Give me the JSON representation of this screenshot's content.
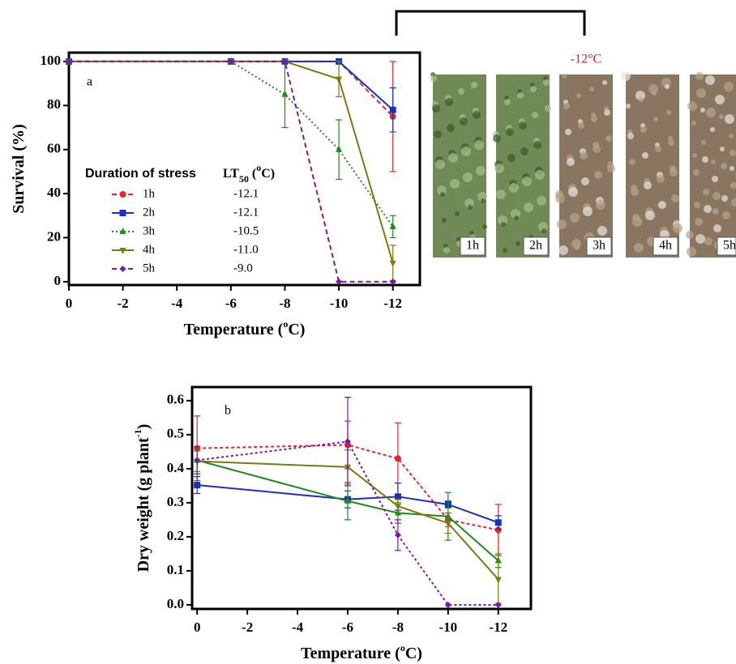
{
  "chart_data": [
    {
      "type": "line",
      "panel": "a",
      "ylabel": [
        "Survival (%)"
      ],
      "xlabel": [
        "Temperature (",
        "o",
        "C)"
      ],
      "x": [
        0,
        -6,
        -8,
        -10,
        -12
      ],
      "xlim": [
        0,
        -13
      ],
      "xticks": [
        0,
        -2,
        -4,
        -6,
        -8,
        -10,
        -12
      ],
      "ylim": [
        -1.5,
        104
      ],
      "yticks": [
        0,
        20,
        40,
        60,
        80,
        100
      ],
      "legend_title": "Duration of stress",
      "lt50_header": [
        "LT",
        "50",
        " (",
        "o",
        "C)"
      ],
      "series": [
        {
          "name": "1h",
          "lt50": "-12.1",
          "color": "#e8262a",
          "dash": "6,4",
          "marker": "circle",
          "values": [
            100,
            100,
            100,
            100,
            75
          ],
          "errors": [
            0,
            0,
            0,
            0,
            25
          ]
        },
        {
          "name": "2h",
          "lt50": "-12.1",
          "color": "#1a2fc0",
          "dash": "none",
          "marker": "square",
          "values": [
            100,
            100,
            100,
            100,
            78
          ],
          "errors": [
            0,
            0,
            0,
            0,
            10
          ]
        },
        {
          "name": "3h",
          "lt50": "-10.5",
          "color": "#1e8a1e",
          "dash": "2,3",
          "marker": "triangle-up",
          "values": [
            100,
            100,
            85,
            60,
            25
          ],
          "errors": [
            0,
            0,
            15,
            13.5,
            5
          ]
        },
        {
          "name": "4h",
          "lt50": "-11.0",
          "color": "#7a7a10",
          "dash": "none",
          "marker": "triangle-down",
          "values": [
            100,
            100,
            100,
            92,
            8.5
          ],
          "errors": [
            0,
            0,
            0,
            8,
            8
          ]
        },
        {
          "name": "5h",
          "lt50": "-9.0",
          "color": "#7a1aa0",
          "dash": "6,4",
          "marker": "diamond",
          "values": [
            100,
            100,
            100,
            0,
            0
          ],
          "errors": [
            0,
            0,
            0,
            0,
            0
          ]
        }
      ]
    },
    {
      "type": "line",
      "panel": "b",
      "ylabel": [
        "Dry weight (g plant",
        "-1",
        ")"
      ],
      "xlabel": [
        "Temperature (",
        "o",
        "C)"
      ],
      "x": [
        0,
        -6,
        -8,
        -10,
        -12
      ],
      "xlim": [
        0.2,
        -13.3
      ],
      "xticks": [
        0,
        -2,
        -4,
        -6,
        -8,
        -10,
        -12
      ],
      "ylim": [
        -0.012,
        0.64
      ],
      "yticks": [
        {
          "value": 0,
          "label": "0.0"
        },
        0.1,
        0.2,
        0.3,
        0.4,
        0.5,
        0.6
      ],
      "series": [
        {
          "color": "#e8262a",
          "dash": "4,3",
          "marker": "circle",
          "values": [
            0.46,
            0.47,
            0.43,
            0.25,
            0.22
          ],
          "errors": [
            0.095,
            0.07,
            0.105,
            0.02,
            0.075
          ]
        },
        {
          "color": "#1a2fc0",
          "dash": "none",
          "marker": "square",
          "values": [
            0.352,
            0.31,
            0.318,
            0.295,
            0.242
          ],
          "errors": [
            0.025,
            0.025,
            0.04,
            0.01,
            0.02
          ]
        },
        {
          "color": "#1e8a1e",
          "dash": "none",
          "marker": "triangle-up",
          "values": [
            0.425,
            0.305,
            0.27,
            0.26,
            0.13
          ],
          "errors": [
            0.04,
            0.055,
            0.03,
            0.07,
            0.02
          ]
        },
        {
          "color": "#7a7a10",
          "dash": "none",
          "marker": "triangle-down",
          "values": [
            0.422,
            0.405,
            0.29,
            0.24,
            0.075
          ],
          "errors": [
            0.03,
            0.05,
            0.02,
            0.03,
            0.07
          ]
        },
        {
          "color": "#7a1aa0",
          "dash": "3,3",
          "marker": "diamond",
          "values": [
            0.425,
            0.48,
            0.205,
            0,
            0
          ],
          "errors": [
            0.04,
            0.13,
            0.045,
            0,
            0
          ]
        }
      ]
    }
  ],
  "photos": {
    "title": "-12°C",
    "labels": [
      "1h",
      "2h",
      "3h",
      "4h",
      "5h"
    ]
  }
}
